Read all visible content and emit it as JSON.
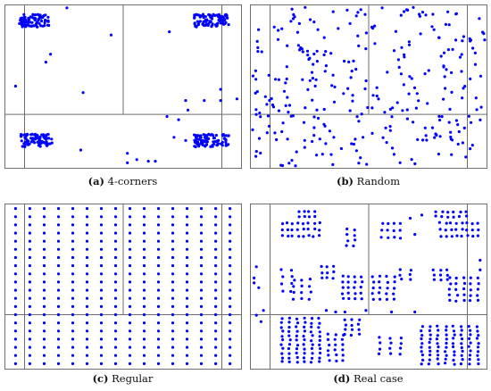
{
  "chart_data": [
    {
      "type": "scatter",
      "caption_tag": "(a)",
      "caption_text": "4-corners",
      "xlim": [
        0,
        1
      ],
      "ylim": [
        0,
        1
      ],
      "grid": {
        "vertical": [
          0.5
        ],
        "horizontal": [
          0.33
        ]
      },
      "point_color": "#0000ff",
      "clusters": [
        {
          "cx": 0.12,
          "cy": 0.91,
          "w": 0.13,
          "h": 0.08,
          "n": 80
        },
        {
          "cx": 0.88,
          "cy": 0.91,
          "w": 0.15,
          "h": 0.08,
          "n": 90
        },
        {
          "cx": 0.13,
          "cy": 0.16,
          "w": 0.14,
          "h": 0.08,
          "n": 80
        },
        {
          "cx": 0.88,
          "cy": 0.16,
          "w": 0.15,
          "h": 0.08,
          "n": 90
        }
      ],
      "points": [
        [
          0.26,
          0.99
        ],
        [
          0.45,
          0.82
        ],
        [
          0.7,
          0.84
        ],
        [
          0.19,
          0.7
        ],
        [
          0.17,
          0.65
        ],
        [
          0.04,
          0.5
        ],
        [
          0.33,
          0.46
        ],
        [
          0.77,
          0.41
        ],
        [
          0.85,
          0.41
        ],
        [
          0.92,
          0.41
        ],
        [
          0.99,
          0.42
        ],
        [
          0.92,
          0.48
        ],
        [
          0.74,
          0.29
        ],
        [
          0.69,
          0.31
        ],
        [
          0.78,
          0.35
        ],
        [
          0.72,
          0.18
        ],
        [
          0.77,
          0.16
        ],
        [
          0.32,
          0.1
        ],
        [
          0.52,
          0.08
        ],
        [
          0.56,
          0.04
        ],
        [
          0.61,
          0.03
        ],
        [
          0.64,
          0.03
        ],
        [
          0.52,
          0.02
        ]
      ]
    },
    {
      "type": "scatter",
      "caption_tag": "(b)",
      "caption_text": "Random",
      "xlim": [
        0,
        1
      ],
      "ylim": [
        0,
        1
      ],
      "grid": {
        "vertical": [
          0.5
        ],
        "horizontal": [
          0.33
        ]
      },
      "point_color": "#0000ff",
      "random_points": 300
    },
    {
      "type": "scatter",
      "caption_tag": "(c)",
      "caption_text": "Regular",
      "xlim": [
        0,
        1
      ],
      "ylim": [
        0,
        1
      ],
      "grid": {
        "vertical": [
          0.5
        ],
        "horizontal": [
          0.33
        ]
      },
      "point_color": "#0000ff",
      "lattice": {
        "cols": 16,
        "rows": 20,
        "x0": 0.04,
        "x1": 0.96,
        "y0": 0.02,
        "y1": 0.98
      }
    },
    {
      "type": "scatter",
      "caption_tag": "(d)",
      "caption_text": "Real case",
      "xlim": [
        0,
        1
      ],
      "ylim": [
        0,
        1
      ],
      "grid": {
        "vertical": [
          0.5
        ],
        "horizontal": [
          0.33
        ]
      },
      "point_color": "#0000ff",
      "blocks": [
        {
          "x0": 0.13,
          "x1": 0.29,
          "y0": 0.81,
          "y1": 0.89,
          "cols": 8,
          "rows": 3
        },
        {
          "x0": 0.2,
          "x1": 0.27,
          "y0": 0.93,
          "y1": 0.96,
          "cols": 4,
          "rows": 2
        },
        {
          "x0": 0.41,
          "x1": 0.44,
          "y0": 0.75,
          "y1": 0.85,
          "cols": 2,
          "rows": 4
        },
        {
          "x0": 0.56,
          "x1": 0.64,
          "y0": 0.8,
          "y1": 0.89,
          "cols": 4,
          "rows": 3
        },
        {
          "x0": 0.81,
          "x1": 0.97,
          "y0": 0.81,
          "y1": 0.89,
          "cols": 8,
          "rows": 3
        },
        {
          "x0": 0.79,
          "x1": 0.92,
          "y0": 0.93,
          "y1": 0.96,
          "cols": 6,
          "rows": 2
        },
        {
          "x0": 0.13,
          "x1": 0.17,
          "y0": 0.47,
          "y1": 0.6,
          "cols": 2,
          "rows": 4
        },
        {
          "x0": 0.18,
          "x1": 0.25,
          "y0": 0.42,
          "y1": 0.54,
          "cols": 3,
          "rows": 4
        },
        {
          "x0": 0.3,
          "x1": 0.35,
          "y0": 0.55,
          "y1": 0.62,
          "cols": 3,
          "rows": 3
        },
        {
          "x0": 0.39,
          "x1": 0.47,
          "y0": 0.42,
          "y1": 0.56,
          "cols": 4,
          "rows": 5
        },
        {
          "x0": 0.52,
          "x1": 0.61,
          "y0": 0.42,
          "y1": 0.56,
          "cols": 4,
          "rows": 5
        },
        {
          "x0": 0.64,
          "x1": 0.68,
          "y0": 0.54,
          "y1": 0.6,
          "cols": 2,
          "rows": 3
        },
        {
          "x0": 0.78,
          "x1": 0.84,
          "y0": 0.54,
          "y1": 0.6,
          "cols": 3,
          "rows": 3
        },
        {
          "x0": 0.85,
          "x1": 0.97,
          "y0": 0.41,
          "y1": 0.55,
          "cols": 5,
          "rows": 5
        },
        {
          "x0": 0.13,
          "x1": 0.29,
          "y0": 0.03,
          "y1": 0.3,
          "cols": 6,
          "rows": 11
        },
        {
          "x0": 0.33,
          "x1": 0.39,
          "y0": 0.04,
          "y1": 0.2,
          "cols": 3,
          "rows": 6
        },
        {
          "x0": 0.4,
          "x1": 0.46,
          "y0": 0.2,
          "y1": 0.29,
          "cols": 3,
          "rows": 4
        },
        {
          "x0": 0.55,
          "x1": 0.64,
          "y0": 0.08,
          "y1": 0.18,
          "cols": 3,
          "rows": 4
        },
        {
          "x0": 0.73,
          "x1": 0.97,
          "y0": 0.02,
          "y1": 0.25,
          "cols": 8,
          "rows": 10
        }
      ],
      "points": [
        [
          0.02,
          0.62
        ],
        [
          0.01,
          0.55
        ],
        [
          0.01,
          0.52
        ],
        [
          0.03,
          0.49
        ],
        [
          0.02,
          0.32
        ],
        [
          0.04,
          0.28
        ],
        [
          0.05,
          0.35
        ],
        [
          0.7,
          0.82
        ],
        [
          0.73,
          0.94
        ],
        [
          0.68,
          0.92
        ],
        [
          0.98,
          0.66
        ],
        [
          0.98,
          0.6
        ],
        [
          0.49,
          0.35
        ],
        [
          0.6,
          0.34
        ],
        [
          0.7,
          0.34
        ],
        [
          0.32,
          0.35
        ],
        [
          0.36,
          0.34
        ],
        [
          0.4,
          0.34
        ]
      ]
    }
  ]
}
